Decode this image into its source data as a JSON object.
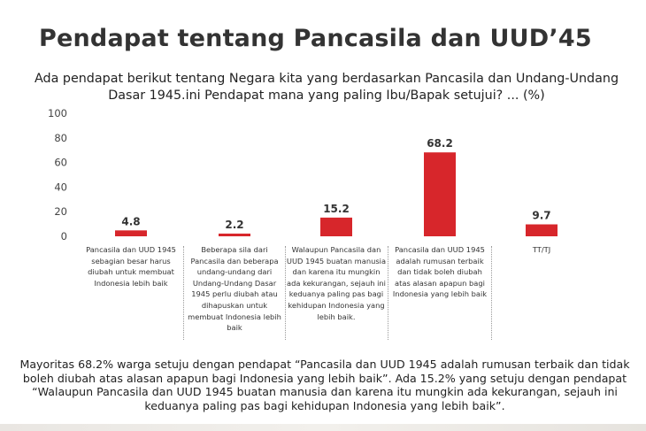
{
  "slide": {
    "title": "Pendapat tentang Pancasila dan UUD’45",
    "question": "Ada pendapat berikut tentang Negara kita yang berdasarkan Pancasila dan Undang-Undang Dasar 1945.ini  Pendapat mana yang paling Ibu/Bapak setujui? ... (%)",
    "summary": "Mayoritas 68.2% warga setuju dengan pendapat “Pancasila dan UUD 1945 adalah rumusan terbaik dan tidak boleh diubah atas alasan apapun bagi Indonesia yang lebih baik”. Ada 15.2% yang setuju dengan pendapat “Walaupun Pancasila dan UUD 1945 buatan manusia dan karena itu mungkin ada kekurangan, sejauh ini keduanya paling pas bagi kehidupan Indonesia yang lebih baik”."
  },
  "colors": {
    "bar": "#d7262b",
    "axis_text": "#444444",
    "title": "#333333"
  },
  "chart_data": {
    "type": "bar",
    "categories": [
      "Pancasila dan UUD 1945 sebagian besar harus diubah untuk membuat Indonesia lebih baik",
      "Beberapa sila dari Pancasila dan beberapa undang-undang dari Undang-Undang Dasar 1945 perlu diubah atau dihapuskan untuk membuat Indonesia lebih baik",
      "Walaupun Pancasila dan UUD 1945 buatan manusia dan karena itu mungkin ada kekurangan, sejauh ini keduanya paling pas bagi kehidupan Indonesia yang lebih baik.",
      "Pancasila dan UUD 1945 adalah rumusan terbaik dan tidak boleh diubah atas alasan apapun bagi Indonesia yang lebih baik",
      "TT/TJ"
    ],
    "values": [
      4.8,
      2.2,
      15.2,
      68.2,
      9.7
    ],
    "value_labels": [
      "4.8",
      "2.2",
      "15.2",
      "68.2",
      "9.7"
    ],
    "ylim": [
      0,
      100
    ],
    "yticks": [
      0,
      20,
      40,
      60,
      80,
      100
    ],
    "grid": false,
    "legend": "none"
  }
}
